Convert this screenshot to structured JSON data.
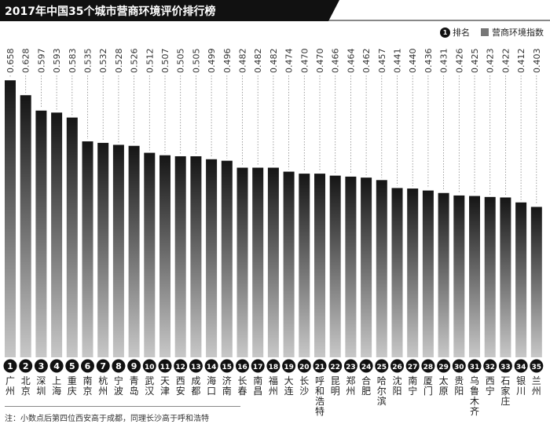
{
  "header": {
    "title": "2017年中国35个城市营商环境评价排行榜"
  },
  "legend": {
    "rank_icon_text": "1",
    "rank_label": "排名",
    "index_label": "营商环境指数"
  },
  "footnote": "注：小数点后第四位西安高于成都，同理长沙高于呼和浩特",
  "colors": {
    "title_bar": "#111111",
    "bar_top": "#151515",
    "bar_bottom": "#c8c8c8",
    "rank_circle": "#111111"
  },
  "chart_data": {
    "type": "bar",
    "title": "2017年中国35个城市营商环境评价排行榜",
    "series": [
      {
        "name": "营商环境指数",
        "values": [
          0.658,
          0.628,
          0.597,
          0.593,
          0.583,
          0.535,
          0.532,
          0.528,
          0.526,
          0.512,
          0.507,
          0.505,
          0.505,
          0.499,
          0.496,
          0.482,
          0.482,
          0.482,
          0.474,
          0.47,
          0.47,
          0.466,
          0.464,
          0.462,
          0.457,
          0.441,
          0.44,
          0.436,
          0.431,
          0.426,
          0.425,
          0.423,
          0.422,
          0.412,
          0.403
        ]
      }
    ],
    "categories": [
      "广州",
      "北京",
      "深圳",
      "上海",
      "重庆",
      "南京",
      "杭州",
      "宁波",
      "青岛",
      "武汉",
      "天津",
      "西安",
      "成都",
      "海口",
      "济南",
      "长春",
      "南昌",
      "福州",
      "大连",
      "长沙",
      "呼和浩特",
      "昆明",
      "郑州",
      "合肥",
      "哈尔滨",
      "沈阳",
      "南宁",
      "厦门",
      "太原",
      "贵阳",
      "乌鲁木齐",
      "西宁",
      "石家庄",
      "银川",
      "兰州"
    ],
    "labels": [
      "0.658",
      "0.628",
      "0.597",
      "0.593",
      "0.583",
      "0.535",
      "0.532",
      "0.528",
      "0.526",
      "0.512",
      "0.507",
      "0.505",
      "0.505",
      "0.499",
      "0.496",
      "0.482",
      "0.482",
      "0.482",
      "0.474",
      "0.470",
      "0.470",
      "0.466",
      "0.464",
      "0.462",
      "0.457",
      "0.441",
      "0.440",
      "0.436",
      "0.431",
      "0.426",
      "0.425",
      "0.423",
      "0.422",
      "0.412",
      "0.403"
    ],
    "ranks": [
      "1",
      "2",
      "3",
      "4",
      "5",
      "6",
      "7",
      "8",
      "9",
      "10",
      "11",
      "12",
      "13",
      "14",
      "15",
      "16",
      "17",
      "18",
      "19",
      "20",
      "21",
      "22",
      "23",
      "24",
      "25",
      "26",
      "27",
      "28",
      "29",
      "30",
      "31",
      "32",
      "33",
      "34",
      "35"
    ],
    "ylim": [
      0.1,
      0.66
    ],
    "grid": false,
    "legend_position": "top-right"
  }
}
